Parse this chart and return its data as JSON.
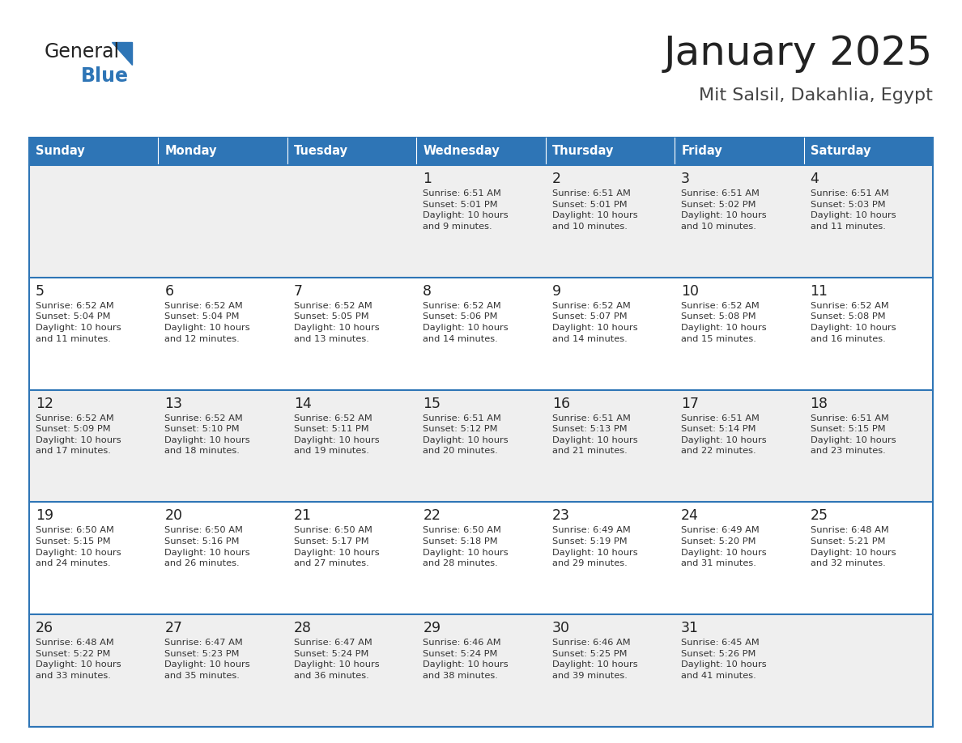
{
  "title": "January 2025",
  "subtitle": "Mit Salsil, Dakahlia, Egypt",
  "days_of_week": [
    "Sunday",
    "Monday",
    "Tuesday",
    "Wednesday",
    "Thursday",
    "Friday",
    "Saturday"
  ],
  "header_bg": "#2E75B6",
  "header_text_color": "#FFFFFF",
  "row_bg_odd": "#EFEFEF",
  "row_bg_even": "#FFFFFF",
  "cell_border_color": "#2E75B6",
  "day_num_color": "#222222",
  "detail_color": "#333333",
  "title_color": "#222222",
  "subtitle_color": "#444444",
  "calendar": [
    [
      {
        "day": null,
        "info": null
      },
      {
        "day": null,
        "info": null
      },
      {
        "day": null,
        "info": null
      },
      {
        "day": 1,
        "info": "Sunrise: 6:51 AM\nSunset: 5:01 PM\nDaylight: 10 hours\nand 9 minutes."
      },
      {
        "day": 2,
        "info": "Sunrise: 6:51 AM\nSunset: 5:01 PM\nDaylight: 10 hours\nand 10 minutes."
      },
      {
        "day": 3,
        "info": "Sunrise: 6:51 AM\nSunset: 5:02 PM\nDaylight: 10 hours\nand 10 minutes."
      },
      {
        "day": 4,
        "info": "Sunrise: 6:51 AM\nSunset: 5:03 PM\nDaylight: 10 hours\nand 11 minutes."
      }
    ],
    [
      {
        "day": 5,
        "info": "Sunrise: 6:52 AM\nSunset: 5:04 PM\nDaylight: 10 hours\nand 11 minutes."
      },
      {
        "day": 6,
        "info": "Sunrise: 6:52 AM\nSunset: 5:04 PM\nDaylight: 10 hours\nand 12 minutes."
      },
      {
        "day": 7,
        "info": "Sunrise: 6:52 AM\nSunset: 5:05 PM\nDaylight: 10 hours\nand 13 minutes."
      },
      {
        "day": 8,
        "info": "Sunrise: 6:52 AM\nSunset: 5:06 PM\nDaylight: 10 hours\nand 14 minutes."
      },
      {
        "day": 9,
        "info": "Sunrise: 6:52 AM\nSunset: 5:07 PM\nDaylight: 10 hours\nand 14 minutes."
      },
      {
        "day": 10,
        "info": "Sunrise: 6:52 AM\nSunset: 5:08 PM\nDaylight: 10 hours\nand 15 minutes."
      },
      {
        "day": 11,
        "info": "Sunrise: 6:52 AM\nSunset: 5:08 PM\nDaylight: 10 hours\nand 16 minutes."
      }
    ],
    [
      {
        "day": 12,
        "info": "Sunrise: 6:52 AM\nSunset: 5:09 PM\nDaylight: 10 hours\nand 17 minutes."
      },
      {
        "day": 13,
        "info": "Sunrise: 6:52 AM\nSunset: 5:10 PM\nDaylight: 10 hours\nand 18 minutes."
      },
      {
        "day": 14,
        "info": "Sunrise: 6:52 AM\nSunset: 5:11 PM\nDaylight: 10 hours\nand 19 minutes."
      },
      {
        "day": 15,
        "info": "Sunrise: 6:51 AM\nSunset: 5:12 PM\nDaylight: 10 hours\nand 20 minutes."
      },
      {
        "day": 16,
        "info": "Sunrise: 6:51 AM\nSunset: 5:13 PM\nDaylight: 10 hours\nand 21 minutes."
      },
      {
        "day": 17,
        "info": "Sunrise: 6:51 AM\nSunset: 5:14 PM\nDaylight: 10 hours\nand 22 minutes."
      },
      {
        "day": 18,
        "info": "Sunrise: 6:51 AM\nSunset: 5:15 PM\nDaylight: 10 hours\nand 23 minutes."
      }
    ],
    [
      {
        "day": 19,
        "info": "Sunrise: 6:50 AM\nSunset: 5:15 PM\nDaylight: 10 hours\nand 24 minutes."
      },
      {
        "day": 20,
        "info": "Sunrise: 6:50 AM\nSunset: 5:16 PM\nDaylight: 10 hours\nand 26 minutes."
      },
      {
        "day": 21,
        "info": "Sunrise: 6:50 AM\nSunset: 5:17 PM\nDaylight: 10 hours\nand 27 minutes."
      },
      {
        "day": 22,
        "info": "Sunrise: 6:50 AM\nSunset: 5:18 PM\nDaylight: 10 hours\nand 28 minutes."
      },
      {
        "day": 23,
        "info": "Sunrise: 6:49 AM\nSunset: 5:19 PM\nDaylight: 10 hours\nand 29 minutes."
      },
      {
        "day": 24,
        "info": "Sunrise: 6:49 AM\nSunset: 5:20 PM\nDaylight: 10 hours\nand 31 minutes."
      },
      {
        "day": 25,
        "info": "Sunrise: 6:48 AM\nSunset: 5:21 PM\nDaylight: 10 hours\nand 32 minutes."
      }
    ],
    [
      {
        "day": 26,
        "info": "Sunrise: 6:48 AM\nSunset: 5:22 PM\nDaylight: 10 hours\nand 33 minutes."
      },
      {
        "day": 27,
        "info": "Sunrise: 6:47 AM\nSunset: 5:23 PM\nDaylight: 10 hours\nand 35 minutes."
      },
      {
        "day": 28,
        "info": "Sunrise: 6:47 AM\nSunset: 5:24 PM\nDaylight: 10 hours\nand 36 minutes."
      },
      {
        "day": 29,
        "info": "Sunrise: 6:46 AM\nSunset: 5:24 PM\nDaylight: 10 hours\nand 38 minutes."
      },
      {
        "day": 30,
        "info": "Sunrise: 6:46 AM\nSunset: 5:25 PM\nDaylight: 10 hours\nand 39 minutes."
      },
      {
        "day": 31,
        "info": "Sunrise: 6:45 AM\nSunset: 5:26 PM\nDaylight: 10 hours\nand 41 minutes."
      },
      {
        "day": null,
        "info": null
      }
    ]
  ]
}
